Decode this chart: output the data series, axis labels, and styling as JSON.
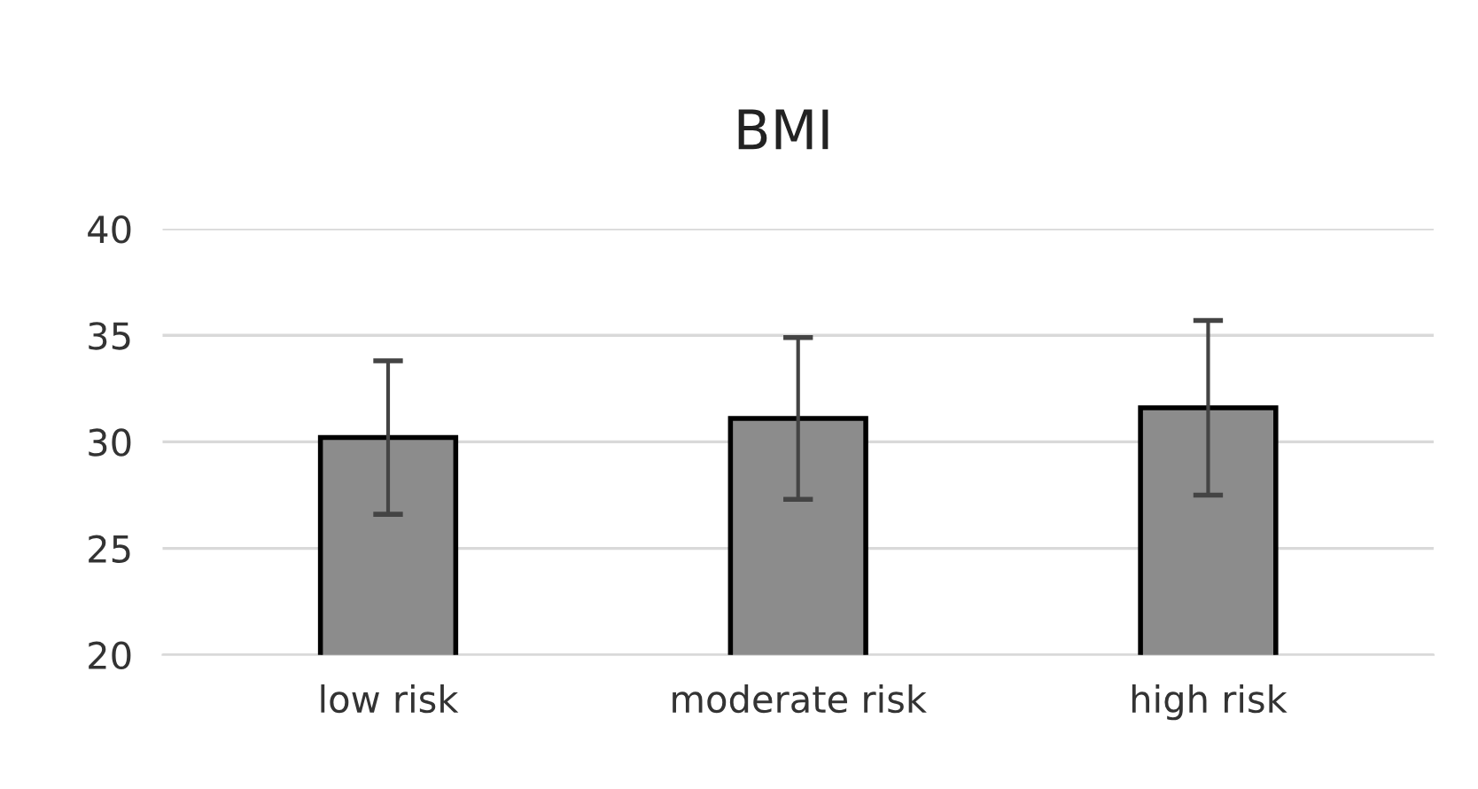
{
  "chart_data": {
    "type": "bar",
    "title": "BMI",
    "categories": [
      "low risk",
      "moderate risk",
      "high risk"
    ],
    "values": [
      30.2,
      31.1,
      31.6
    ],
    "errors": [
      3.6,
      3.8,
      4.1
    ],
    "color": "#8c8c8c",
    "ylim": [
      20,
      40
    ],
    "yticks": [
      20,
      25,
      30,
      35,
      40
    ],
    "grid": "y"
  }
}
